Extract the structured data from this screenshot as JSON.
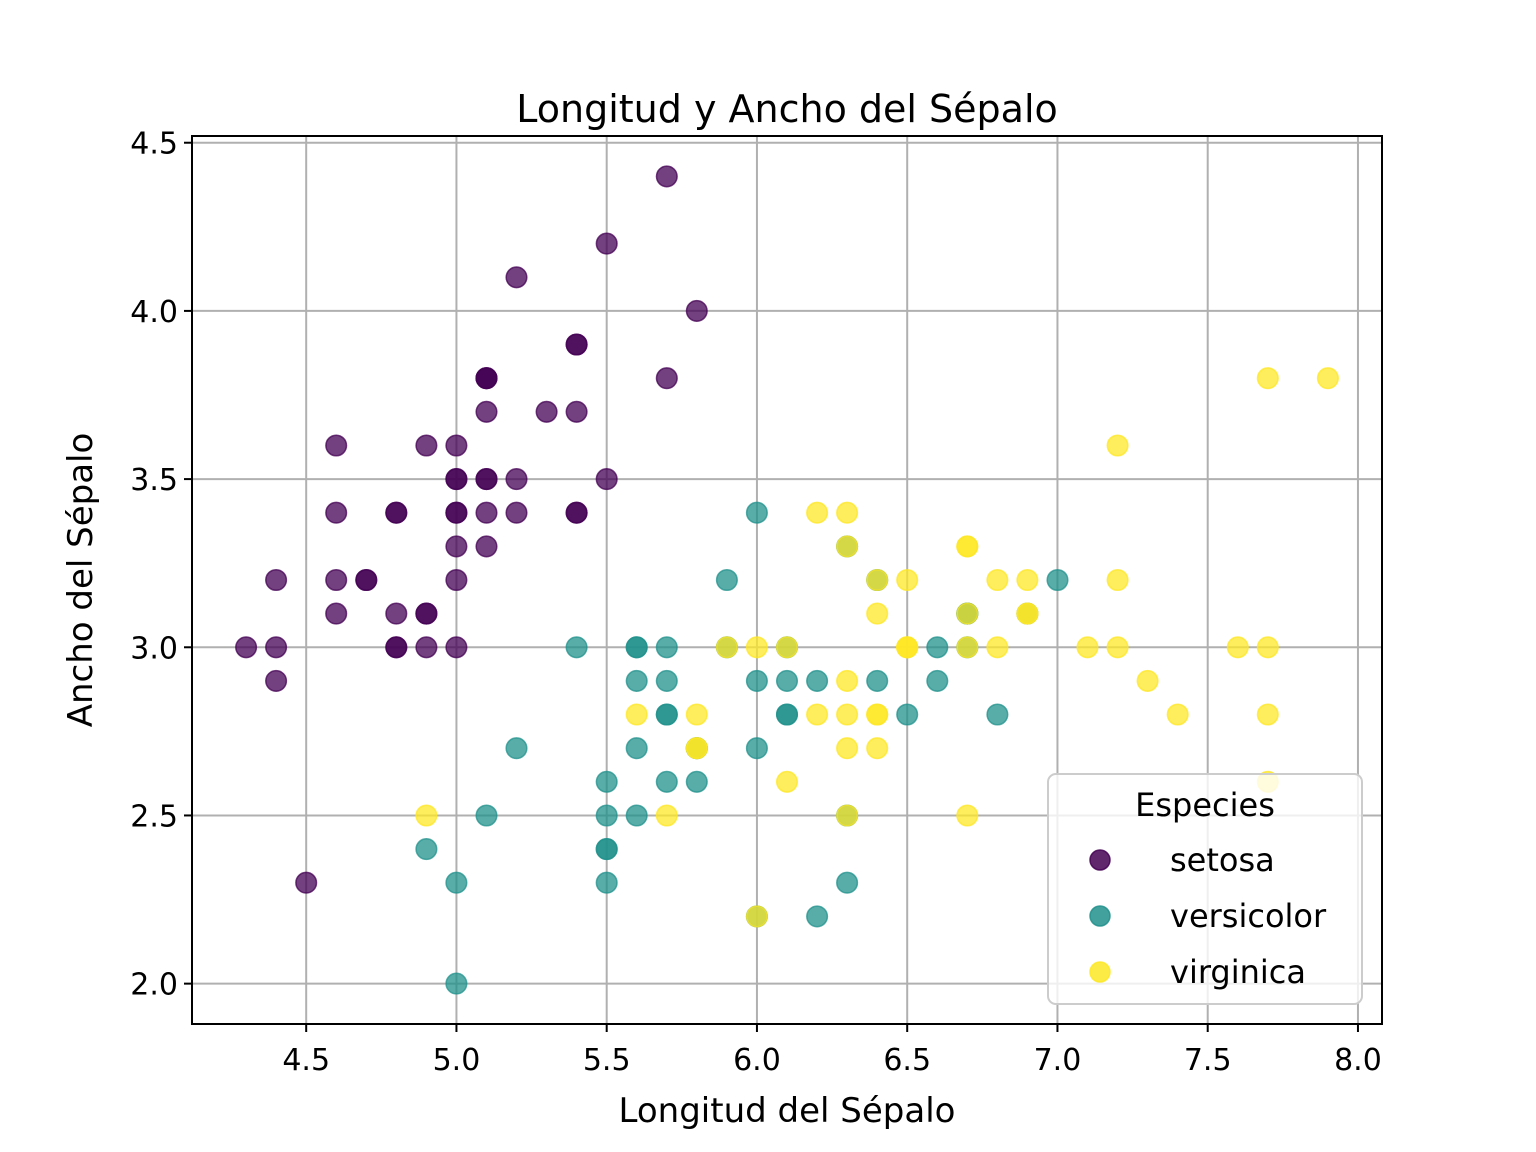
{
  "figure": {
    "background": "#ffffff"
  },
  "chart_data": {
    "type": "scatter",
    "title": "Longitud y Ancho del Sépalo",
    "xlabel": "Longitud del Sépalo",
    "ylabel": "Ancho del Sépalo",
    "xlim": [
      4.12,
      8.08
    ],
    "ylim": [
      1.88,
      4.52
    ],
    "x_ticks": [
      4.5,
      5.0,
      5.5,
      6.0,
      6.5,
      7.0,
      7.5,
      8.0
    ],
    "x_tick_labels": [
      "4.5",
      "5.0",
      "5.5",
      "6.0",
      "6.5",
      "7.0",
      "7.5",
      "8.0"
    ],
    "y_ticks": [
      2.0,
      2.5,
      3.0,
      3.5,
      4.0,
      4.5
    ],
    "y_tick_labels": [
      "2.0",
      "2.5",
      "3.0",
      "3.5",
      "4.0",
      "4.5"
    ],
    "grid": true,
    "grid_color": "#b0b0b0",
    "marker_alpha": 0.75,
    "legend": {
      "title": "Especies",
      "position": "lower right",
      "entries": [
        "setosa",
        "versicolor",
        "virginica"
      ]
    },
    "series": [
      {
        "name": "setosa",
        "color": "#440154",
        "points": [
          [
            5.1,
            3.5
          ],
          [
            4.9,
            3.0
          ],
          [
            4.7,
            3.2
          ],
          [
            4.6,
            3.1
          ],
          [
            5.0,
            3.6
          ],
          [
            5.4,
            3.9
          ],
          [
            4.6,
            3.4
          ],
          [
            5.0,
            3.4
          ],
          [
            4.4,
            2.9
          ],
          [
            4.9,
            3.1
          ],
          [
            5.4,
            3.7
          ],
          [
            4.8,
            3.4
          ],
          [
            4.8,
            3.0
          ],
          [
            4.3,
            3.0
          ],
          [
            5.8,
            4.0
          ],
          [
            5.7,
            4.4
          ],
          [
            5.4,
            3.9
          ],
          [
            5.1,
            3.5
          ],
          [
            5.7,
            3.8
          ],
          [
            5.1,
            3.8
          ],
          [
            5.4,
            3.4
          ],
          [
            5.1,
            3.7
          ],
          [
            4.6,
            3.6
          ],
          [
            5.1,
            3.3
          ],
          [
            4.8,
            3.4
          ],
          [
            5.0,
            3.0
          ],
          [
            5.0,
            3.4
          ],
          [
            5.2,
            3.5
          ],
          [
            5.2,
            3.4
          ],
          [
            4.7,
            3.2
          ],
          [
            4.8,
            3.1
          ],
          [
            5.4,
            3.4
          ],
          [
            5.2,
            4.1
          ],
          [
            5.5,
            4.2
          ],
          [
            4.9,
            3.1
          ],
          [
            5.0,
            3.2
          ],
          [
            5.5,
            3.5
          ],
          [
            4.9,
            3.6
          ],
          [
            4.4,
            3.0
          ],
          [
            5.1,
            3.4
          ],
          [
            5.0,
            3.5
          ],
          [
            4.5,
            2.3
          ],
          [
            4.4,
            3.2
          ],
          [
            5.0,
            3.5
          ],
          [
            5.1,
            3.8
          ],
          [
            4.8,
            3.0
          ],
          [
            5.1,
            3.8
          ],
          [
            4.6,
            3.2
          ],
          [
            5.3,
            3.7
          ],
          [
            5.0,
            3.3
          ]
        ]
      },
      {
        "name": "versicolor",
        "color": "#21918c",
        "points": [
          [
            7.0,
            3.2
          ],
          [
            6.4,
            3.2
          ],
          [
            6.9,
            3.1
          ],
          [
            5.5,
            2.3
          ],
          [
            6.5,
            2.8
          ],
          [
            5.7,
            2.8
          ],
          [
            6.3,
            3.3
          ],
          [
            4.9,
            2.4
          ],
          [
            6.6,
            2.9
          ],
          [
            5.2,
            2.7
          ],
          [
            5.0,
            2.0
          ],
          [
            5.9,
            3.0
          ],
          [
            6.0,
            2.2
          ],
          [
            6.1,
            2.9
          ],
          [
            5.6,
            2.9
          ],
          [
            6.7,
            3.1
          ],
          [
            5.6,
            3.0
          ],
          [
            5.8,
            2.7
          ],
          [
            6.2,
            2.2
          ],
          [
            5.6,
            2.5
          ],
          [
            5.9,
            3.2
          ],
          [
            6.1,
            2.8
          ],
          [
            6.3,
            2.5
          ],
          [
            6.1,
            2.8
          ],
          [
            6.4,
            2.9
          ],
          [
            6.6,
            3.0
          ],
          [
            6.8,
            2.8
          ],
          [
            6.7,
            3.0
          ],
          [
            6.0,
            2.9
          ],
          [
            5.7,
            2.6
          ],
          [
            5.5,
            2.4
          ],
          [
            5.5,
            2.4
          ],
          [
            5.8,
            2.7
          ],
          [
            6.0,
            2.7
          ],
          [
            5.4,
            3.0
          ],
          [
            6.0,
            3.4
          ],
          [
            6.7,
            3.1
          ],
          [
            6.3,
            2.3
          ],
          [
            5.6,
            3.0
          ],
          [
            5.5,
            2.5
          ],
          [
            5.5,
            2.6
          ],
          [
            6.1,
            3.0
          ],
          [
            5.8,
            2.6
          ],
          [
            5.0,
            2.3
          ],
          [
            5.6,
            2.7
          ],
          [
            5.7,
            3.0
          ],
          [
            5.7,
            2.9
          ],
          [
            6.2,
            2.9
          ],
          [
            5.1,
            2.5
          ],
          [
            5.7,
            2.8
          ]
        ]
      },
      {
        "name": "virginica",
        "color": "#fde725",
        "points": [
          [
            6.3,
            3.3
          ],
          [
            5.8,
            2.7
          ],
          [
            7.1,
            3.0
          ],
          [
            6.3,
            2.9
          ],
          [
            6.5,
            3.0
          ],
          [
            7.6,
            3.0
          ],
          [
            4.9,
            2.5
          ],
          [
            7.3,
            2.9
          ],
          [
            6.7,
            2.5
          ],
          [
            7.2,
            3.6
          ],
          [
            6.5,
            3.2
          ],
          [
            6.4,
            2.7
          ],
          [
            6.8,
            3.0
          ],
          [
            5.7,
            2.5
          ],
          [
            5.8,
            2.8
          ],
          [
            6.4,
            3.2
          ],
          [
            6.5,
            3.0
          ],
          [
            7.7,
            3.8
          ],
          [
            7.7,
            2.6
          ],
          [
            6.0,
            2.2
          ],
          [
            6.9,
            3.2
          ],
          [
            5.6,
            2.8
          ],
          [
            7.7,
            2.8
          ],
          [
            6.3,
            2.7
          ],
          [
            6.7,
            3.3
          ],
          [
            7.2,
            3.2
          ],
          [
            6.2,
            2.8
          ],
          [
            6.1,
            3.0
          ],
          [
            6.4,
            2.8
          ],
          [
            7.2,
            3.0
          ],
          [
            7.4,
            2.8
          ],
          [
            7.9,
            3.8
          ],
          [
            6.4,
            2.8
          ],
          [
            6.3,
            2.8
          ],
          [
            6.1,
            2.6
          ],
          [
            7.7,
            3.0
          ],
          [
            6.3,
            3.4
          ],
          [
            6.4,
            3.1
          ],
          [
            6.0,
            3.0
          ],
          [
            6.9,
            3.1
          ],
          [
            6.7,
            3.1
          ],
          [
            6.9,
            3.1
          ],
          [
            5.8,
            2.7
          ],
          [
            6.8,
            3.2
          ],
          [
            6.7,
            3.3
          ],
          [
            6.7,
            3.0
          ],
          [
            6.3,
            2.5
          ],
          [
            6.5,
            3.0
          ],
          [
            6.2,
            3.4
          ],
          [
            5.9,
            3.0
          ]
        ]
      }
    ]
  }
}
